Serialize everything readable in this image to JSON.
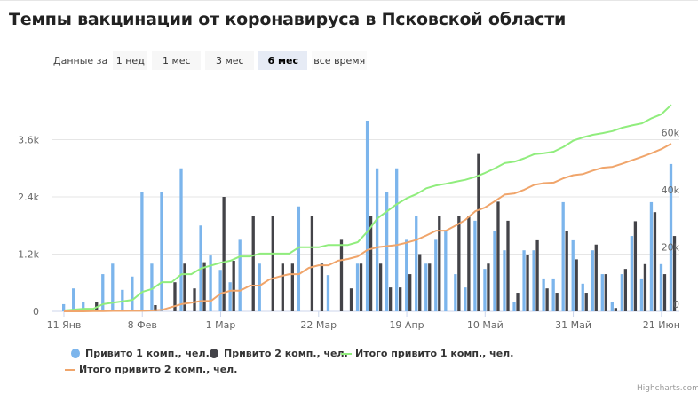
{
  "title": "Темпы вакцинации от коронавируса в Псковской области",
  "range_selector": {
    "label": "Данные за",
    "buttons": [
      "1 нед",
      "1 мес",
      "3 мес",
      "6 мес",
      "все время"
    ],
    "selected": "6 мес"
  },
  "credits": "Highcharts.com",
  "colors": {
    "dose1": "#7cb5ec",
    "dose2": "#434348",
    "total1": "#90ed7d",
    "total2": "#f0a56b",
    "grid": "#e6e6e6"
  },
  "chart_data": {
    "type": "bar+line",
    "x_ticks": [
      {
        "label": "11 Янв",
        "date": "2021-01-11"
      },
      {
        "label": "8 Фев",
        "date": "2021-02-08"
      },
      {
        "label": "1 Мар",
        "date": "2021-03-01"
      },
      {
        "label": "22 Мар",
        "date": "2021-03-22"
      },
      {
        "label": "19 Апр",
        "date": "2021-04-19"
      },
      {
        "label": "10 Май",
        "date": "2021-05-10"
      },
      {
        "label": "31 Май",
        "date": "2021-05-31"
      },
      {
        "label": "21 Июн",
        "date": "2021-06-21"
      }
    ],
    "y_left": {
      "ticks": [
        0,
        1200,
        2400,
        3600
      ],
      "tick_labels": [
        "0",
        "1.2k",
        "2.4k",
        "3.6k"
      ],
      "range": [
        0,
        4800
      ]
    },
    "y_right": {
      "ticks": [
        0,
        20000,
        40000,
        60000
      ],
      "tick_labels": [
        "0",
        "20k",
        "40k",
        "60k"
      ],
      "range": [
        0,
        80000
      ]
    },
    "grid": true,
    "legend_position": "bottom",
    "x": [
      "2021-01-11",
      "2021-01-14",
      "2021-01-18",
      "2021-01-21",
      "2021-01-25",
      "2021-01-28",
      "2021-02-01",
      "2021-02-04",
      "2021-02-08",
      "2021-02-10",
      "2021-02-12",
      "2021-02-15",
      "2021-02-17",
      "2021-02-19",
      "2021-02-22",
      "2021-02-25",
      "2021-03-01",
      "2021-03-03",
      "2021-03-05",
      "2021-03-08",
      "2021-03-10",
      "2021-03-12",
      "2021-03-15",
      "2021-03-17",
      "2021-03-18",
      "2021-03-19",
      "2021-03-22",
      "2021-03-24",
      "2021-03-27",
      "2021-03-31",
      "2021-04-02",
      "2021-04-05",
      "2021-04-08",
      "2021-04-12",
      "2021-04-15",
      "2021-04-19",
      "2021-04-21",
      "2021-04-24",
      "2021-04-26",
      "2021-04-29",
      "2021-05-01",
      "2021-05-04",
      "2021-05-06",
      "2021-05-10",
      "2021-05-12",
      "2021-05-14",
      "2021-05-17",
      "2021-05-19",
      "2021-05-21",
      "2021-05-24",
      "2021-05-26",
      "2021-05-28",
      "2021-05-31",
      "2021-06-02",
      "2021-06-04",
      "2021-06-07",
      "2021-06-09",
      "2021-06-11",
      "2021-06-14",
      "2021-06-16",
      "2021-06-18",
      "2021-06-21",
      "2021-06-23"
    ],
    "series": [
      {
        "name": "Привито 1 комп., чел.",
        "type": "column",
        "axis": "left",
        "values": [
          150,
          480,
          190,
          50,
          780,
          1000,
          450,
          730,
          2500,
          1000,
          2500,
          0,
          3000,
          0,
          1800,
          1170,
          870,
          610,
          1500,
          0,
          1000,
          0,
          0,
          0,
          2200,
          0,
          0,
          760,
          0,
          0,
          1000,
          4000,
          3000,
          2500,
          3000,
          1500,
          2000,
          1000,
          1500,
          1680,
          780,
          500,
          1900,
          890,
          1690,
          1280,
          190,
          1280,
          1280,
          690,
          690,
          2290,
          1490,
          580,
          1280,
          780,
          190,
          780,
          1580,
          690,
          2290,
          990,
          3090
        ]
      },
      {
        "name": "Привито 2 комп., чел.",
        "type": "column",
        "axis": "left",
        "values": [
          0,
          0,
          0,
          190,
          0,
          0,
          0,
          0,
          0,
          130,
          0,
          610,
          1000,
          480,
          1030,
          0,
          2400,
          1060,
          0,
          2000,
          0,
          2000,
          1000,
          1000,
          0,
          2000,
          1000,
          0,
          1500,
          480,
          1000,
          2000,
          1000,
          500,
          500,
          780,
          1200,
          1000,
          2000,
          0,
          2000,
          2000,
          3300,
          1000,
          2300,
          1900,
          390,
          1190,
          1490,
          480,
          390,
          1690,
          1090,
          390,
          1400,
          780,
          70,
          890,
          1890,
          990,
          2080,
          780,
          1580
        ]
      },
      {
        "name": "Итого привито 1 комп., чел.",
        "type": "line",
        "axis": "right",
        "values": [
          300,
          600,
          900,
          900,
          2500,
          3000,
          3500,
          4000,
          6800,
          7800,
          10200,
          10200,
          13000,
          13000,
          15000,
          16000,
          17000,
          17700,
          19200,
          19200,
          20200,
          20200,
          20200,
          20200,
          22400,
          22400,
          22400,
          23200,
          23200,
          23200,
          24200,
          27900,
          32500,
          35000,
          37500,
          39500,
          41000,
          43000,
          44000,
          44600,
          45300,
          46000,
          47000,
          48400,
          50000,
          51800,
          52300,
          53500,
          54900,
          55300,
          55800,
          57500,
          59700,
          60800,
          61700,
          62300,
          63000,
          64200,
          65000,
          65700,
          67500,
          68900,
          72200
        ]
      },
      {
        "name": "Итого привито 2 комп., чел.",
        "type": "line",
        "axis": "right",
        "values": [
          0,
          0,
          0,
          100,
          100,
          150,
          150,
          200,
          200,
          300,
          500,
          1500,
          2500,
          3000,
          3600,
          3600,
          6200,
          7200,
          7200,
          9000,
          9000,
          11200,
          12200,
          13000,
          13000,
          15200,
          16100,
          16100,
          17700,
          18300,
          19200,
          21500,
          22400,
          22800,
          23200,
          24000,
          25000,
          26500,
          28200,
          28200,
          30000,
          32000,
          35000,
          36300,
          38500,
          40800,
          41200,
          42500,
          44200,
          44800,
          45000,
          46500,
          47600,
          48000,
          49200,
          50200,
          50500,
          51600,
          52800,
          54000,
          55300,
          56700,
          58600
        ]
      }
    ]
  }
}
